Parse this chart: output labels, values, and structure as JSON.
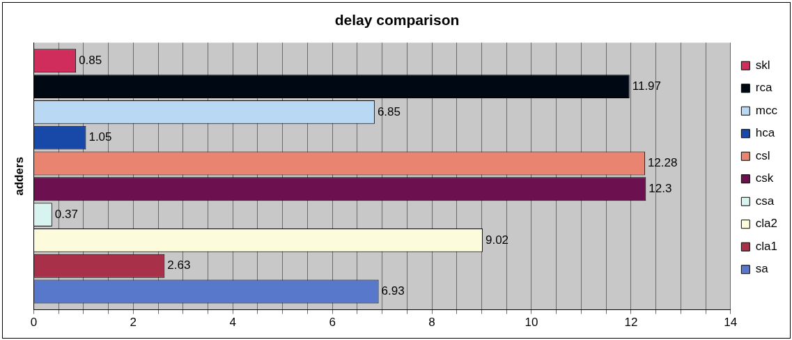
{
  "chart_data": {
    "type": "bar",
    "orientation": "horizontal",
    "title": "delay comparison",
    "ylabel": "adders",
    "categories": [
      null
    ],
    "series": [
      {
        "name": "skl",
        "color": "#d02c5c",
        "values": [
          0.85
        ]
      },
      {
        "name": "rca",
        "color": "#000814",
        "values": [
          11.97
        ]
      },
      {
        "name": "mcc",
        "color": "#b8d8f4",
        "values": [
          6.85
        ]
      },
      {
        "name": "hca",
        "color": "#1848a8",
        "values": [
          1.05
        ]
      },
      {
        "name": "csl",
        "color": "#e88470",
        "values": [
          12.28
        ]
      },
      {
        "name": "csk",
        "color": "#6c1050",
        "values": [
          12.3
        ]
      },
      {
        "name": "csa",
        "color": "#d8f4f0",
        "values": [
          0.37
        ]
      },
      {
        "name": "cla2",
        "color": "#fcfcdc",
        "values": [
          9.02
        ]
      },
      {
        "name": "cla1",
        "color": "#a83048",
        "values": [
          2.63
        ]
      },
      {
        "name": "sa",
        "color": "#5878cc",
        "values": [
          6.93
        ]
      }
    ],
    "xlim": [
      0,
      14
    ],
    "xticks": [
      0,
      {
        "value": 0.5,
        "label": null
      },
      2,
      {
        "value": 1,
        "label": null
      },
      {
        "value": 1.5,
        "label": null
      },
      {
        "value": 2.5,
        "label": null
      },
      {
        "value": 3,
        "label": null
      },
      {
        "value": 3.5,
        "label": null
      },
      4,
      {
        "value": 4.5,
        "label": null
      },
      {
        "value": 5,
        "label": null
      },
      {
        "value": 5.5,
        "label": null
      },
      6,
      {
        "value": 6.5,
        "label": null
      },
      {
        "value": 7,
        "label": null
      },
      {
        "value": 7.5,
        "label": null
      },
      8,
      {
        "value": 8.5,
        "label": null
      },
      {
        "value": 9,
        "label": null
      },
      {
        "value": 9.5,
        "label": null
      },
      10,
      {
        "value": 10.5,
        "label": null
      },
      {
        "value": 11,
        "label": null
      },
      {
        "value": 11.5,
        "label": null
      },
      12,
      {
        "value": 12.5,
        "label": null
      },
      {
        "value": 13,
        "label": null
      },
      {
        "value": 13.5,
        "label": null
      },
      14
    ],
    "grid": "x",
    "legend": "right",
    "data_labels": true
  }
}
